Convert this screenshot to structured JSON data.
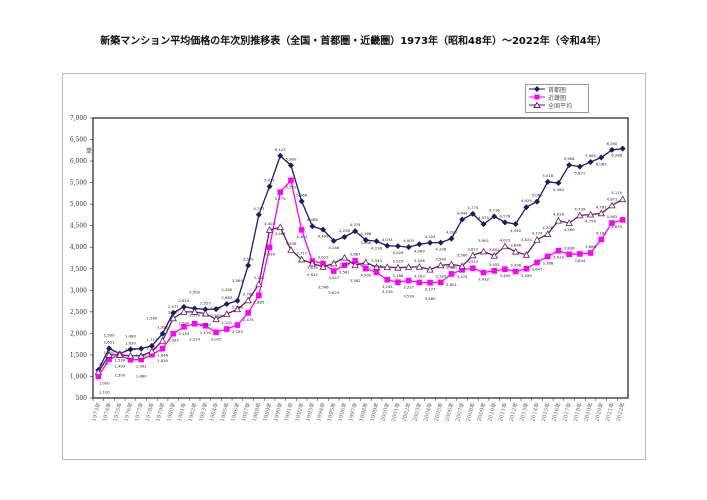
{
  "chart_data": {
    "type": "line",
    "title": "新築マンション平均価格の年次別推移表（全国・首都圏・近畿圏）1973年（昭和48年）～2022年（令和4年）",
    "ylabel": "単位：万円",
    "ylim": [
      500,
      7000
    ],
    "yticks": [
      "500",
      "1,000",
      "1,500",
      "2,000",
      "2,500",
      "3,000",
      "3,500",
      "4,000",
      "4,500",
      "5,000",
      "5,500",
      "6,000",
      "6,500",
      "7,000"
    ],
    "grid": false,
    "legend": "top-right",
    "categories": [
      "1973年",
      "1974年",
      "1975年",
      "1976年",
      "1977年",
      "1978年",
      "1979年",
      "1980年",
      "1981年",
      "1982年",
      "1983年",
      "1984年",
      "1985年",
      "1986年",
      "1987年",
      "1988年",
      "1989年",
      "1990年",
      "1991年",
      "1992年",
      "1993年",
      "1994年",
      "1995年",
      "1996年",
      "1997年",
      "1998年",
      "1999年",
      "2000年",
      "2001年",
      "2002年",
      "2003年",
      "2004年",
      "2005年",
      "2006年",
      "2007年",
      "2008年",
      "2009年",
      "2010年",
      "2011年",
      "2012年",
      "2013年",
      "2014年",
      "2015年",
      "2016年",
      "2017年",
      "2018年",
      "2019年",
      "2020年",
      "2021年",
      "2022年"
    ],
    "series": [
      {
        "name": "首都圏",
        "color": "#1a1a6e",
        "marker": "diamond",
        "values": [
          1150,
          1651,
          1530,
          1630,
          1646,
          1711,
          1992,
          2477,
          2616,
          2579,
          2557,
          2563,
          2683,
          2758,
          3579,
          4753,
          5411,
          6123,
          5900,
          5066,
          4488,
          4409,
          4148,
          4238,
          4374,
          4168,
          4138,
          4034,
          4026,
          4003,
          4069,
          4104,
          4108,
          4200,
          4644,
          4775,
          4535,
          4716,
          4578,
          4540,
          4929,
          5060,
          5518,
          5490,
          5908,
          5871,
          5980,
          6083,
          6260,
          6288
        ]
      },
      {
        "name": "近畿圏",
        "color": "#ff00ff",
        "marker": "square",
        "values": [
          1000,
          1400,
          1493,
          1387,
          1392,
          1505,
          1646,
          1993,
          2153,
          2224,
          2176,
          2025,
          2101,
          2193,
          2475,
          2885,
          3999,
          5279,
          5552,
          4403,
          3678,
          3622,
          3447,
          3581,
          3687,
          3502,
          3415,
          3245,
          3188,
          3227,
          3183,
          3177,
          3184,
          3380,
          3474,
          3513,
          3412,
          3452,
          3490,
          3438,
          3499,
          3647,
          3788,
          3919,
          3836,
          3844,
          3866,
          4181,
          4562,
          4635
        ]
      },
      {
        "name": "全国平均",
        "color": "#6b1a6b",
        "marker": "triangle",
        "values": [
          1100,
          1500,
          1500,
          1480,
          1480,
          1580,
          1830,
          2350,
          2500,
          2500,
          2460,
          2330,
          2450,
          2560,
          2768,
          3141,
          4403,
          4465,
          3938,
          3717,
          3622,
          3546,
          3623,
          3758,
          3582,
          3648,
          3540,
          3539,
          3525,
          3539,
          3546,
          3480,
          3580,
          3601,
          3560,
          3812,
          3901,
          3802,
          4022,
          3896,
          3824,
          4174,
          4306,
          4618,
          4560,
          4739,
          4759,
          4787,
          4971,
          5115
        ]
      }
    ]
  }
}
